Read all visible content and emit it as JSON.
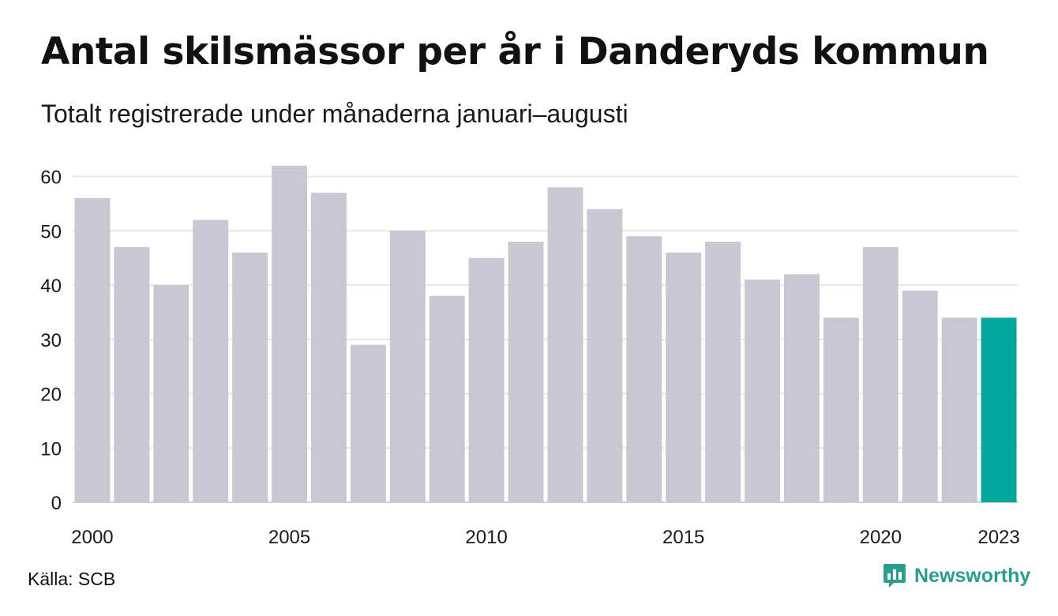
{
  "header": {
    "title": "Antal skilsmässor per år i Danderyds kommun",
    "subtitle": "Totalt registrerade under månaderna januari–augusti"
  },
  "footer": {
    "source": "Källa: SCB",
    "brand": "Newsworthy",
    "brand_icon": "bar-chart-icon",
    "brand_color": "#2a9d8f"
  },
  "chart_data": {
    "type": "bar",
    "categories": [
      "2000",
      "2001",
      "2002",
      "2003",
      "2004",
      "2005",
      "2006",
      "2007",
      "2008",
      "2009",
      "2010",
      "2011",
      "2012",
      "2013",
      "2014",
      "2015",
      "2016",
      "2017",
      "2018",
      "2019",
      "2020",
      "2021",
      "2022",
      "2023"
    ],
    "values": [
      56,
      47,
      40,
      52,
      46,
      62,
      57,
      29,
      50,
      38,
      45,
      48,
      58,
      54,
      49,
      46,
      48,
      41,
      42,
      34,
      47,
      39,
      34,
      34
    ],
    "x_tick_labels": [
      "2000",
      "2005",
      "2010",
      "2015",
      "2020",
      "2023"
    ],
    "y_ticks": [
      0,
      10,
      20,
      30,
      40,
      50,
      60
    ],
    "ylim": [
      0,
      62
    ],
    "xlabel": "",
    "ylabel": "",
    "grid": true,
    "bar_color": "#c8c7d2",
    "highlight_color": "#00a59b",
    "highlight_category": "2023"
  }
}
